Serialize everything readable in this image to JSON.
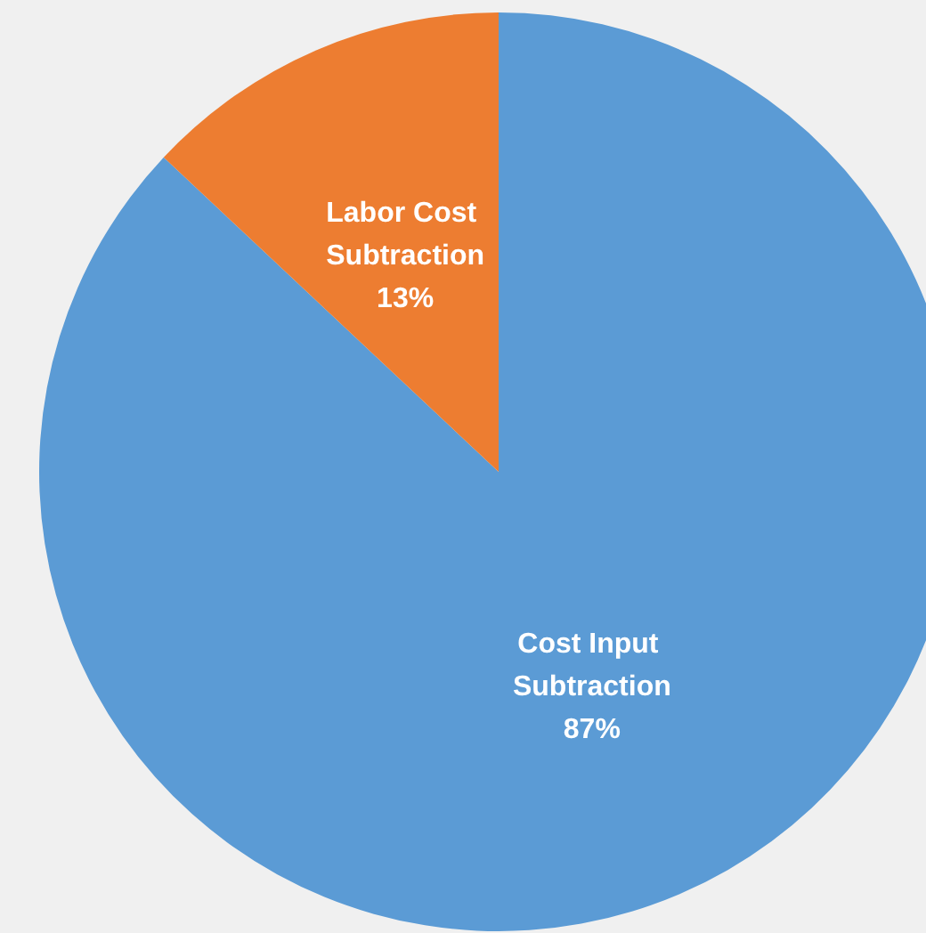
{
  "chart_data": {
    "type": "pie",
    "categories": [
      "Cost Input Subtraction",
      "Labor Cost Subtraction"
    ],
    "values": [
      87,
      13
    ],
    "colors": [
      "#5b9bd5",
      "#ed7d31"
    ],
    "value_labels": [
      "87%",
      "13%"
    ],
    "legend": false
  }
}
